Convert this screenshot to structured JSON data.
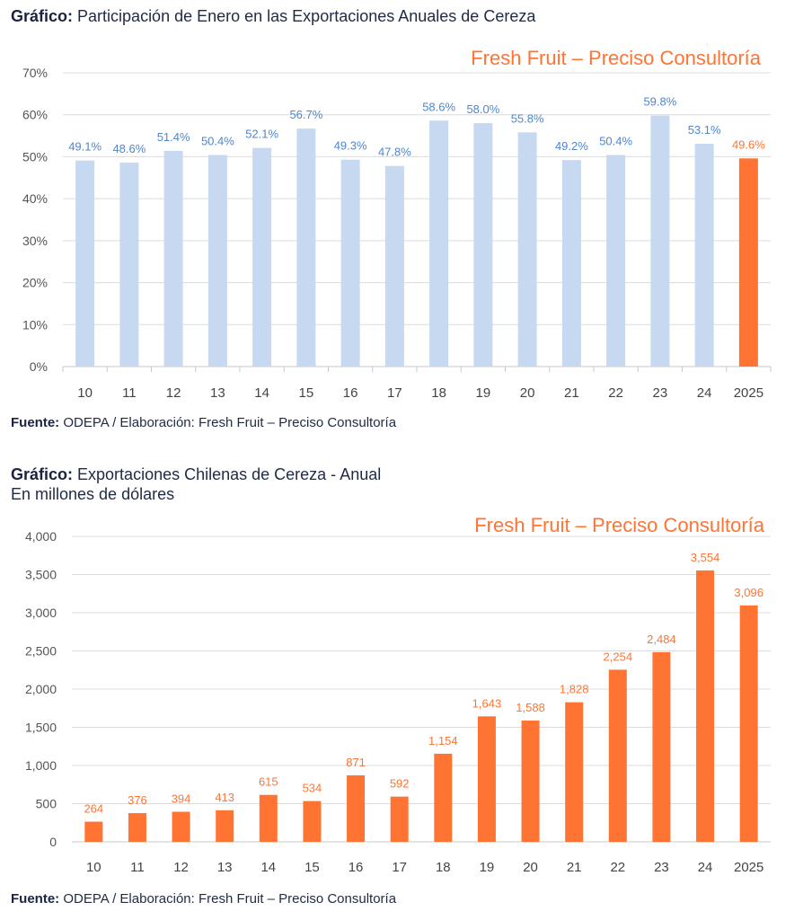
{
  "chart_data": [
    {
      "type": "bar",
      "title_prefix": "Gráfico:",
      "title": "Participación de Enero en las Exportaciones Anuales de Cereza",
      "watermark": "Fresh Fruit – Preciso Consultoría",
      "source_prefix": "Fuente:",
      "source": "ODEPA / Elaboración: Fresh Fruit – Preciso Consultoría",
      "xlabel": "",
      "ylabel": "",
      "ylim": [
        0,
        70
      ],
      "yticks": [
        0,
        10,
        20,
        30,
        40,
        50,
        60,
        70
      ],
      "ytick_labels": [
        "0%",
        "10%",
        "20%",
        "30%",
        "40%",
        "50%",
        "60%",
        "70%"
      ],
      "grid": true,
      "categories": [
        "10",
        "11",
        "12",
        "13",
        "14",
        "15",
        "16",
        "17",
        "18",
        "19",
        "20",
        "21",
        "22",
        "23",
        "24",
        "2025"
      ],
      "values": [
        49.1,
        48.6,
        51.4,
        50.4,
        52.1,
        56.7,
        49.3,
        47.8,
        58.6,
        58.0,
        55.8,
        49.2,
        50.4,
        59.8,
        53.1,
        49.6
      ],
      "value_labels": [
        "49.1%",
        "48.6%",
        "51.4%",
        "50.4%",
        "52.1%",
        "56.7%",
        "49.3%",
        "47.8%",
        "58.6%",
        "58.0%",
        "55.8%",
        "49.2%",
        "50.4%",
        "59.8%",
        "53.1%",
        "49.6%"
      ],
      "highlight_index": 15,
      "colors": {
        "bar": "#c6d9f0",
        "highlight": "#ff7433",
        "label": "#4f86cc"
      }
    },
    {
      "type": "bar",
      "title_prefix": "Gráfico:",
      "title": "Exportaciones Chilenas de Cereza - Anual",
      "subtitle": "En millones de dólares",
      "watermark": "Fresh Fruit – Preciso Consultoría",
      "source_prefix": "Fuente:",
      "source": "ODEPA / Elaboración: Fresh Fruit – Preciso Consultoría",
      "xlabel": "",
      "ylabel": "",
      "ylim": [
        0,
        4000
      ],
      "yticks": [
        0,
        500,
        1000,
        1500,
        2000,
        2500,
        3000,
        3500,
        4000
      ],
      "ytick_labels": [
        "0",
        "500",
        "1,000",
        "1,500",
        "2,000",
        "2,500",
        "3,000",
        "3,500",
        "4,000"
      ],
      "grid": true,
      "categories": [
        "10",
        "11",
        "12",
        "13",
        "14",
        "15",
        "16",
        "17",
        "18",
        "19",
        "20",
        "21",
        "22",
        "23",
        "24",
        "2025"
      ],
      "values": [
        264,
        376,
        394,
        413,
        615,
        534,
        871,
        592,
        1154,
        1643,
        1588,
        1828,
        2254,
        2484,
        3554,
        3096
      ],
      "value_labels": [
        "264",
        "376",
        "394",
        "413",
        "615",
        "534",
        "871",
        "592",
        "1,154",
        "1,643",
        "1,588",
        "1,828",
        "2,254",
        "2,484",
        "3,554",
        "3,096"
      ],
      "colors": {
        "bar": "#ff7433",
        "label": "#ff7433"
      }
    }
  ]
}
